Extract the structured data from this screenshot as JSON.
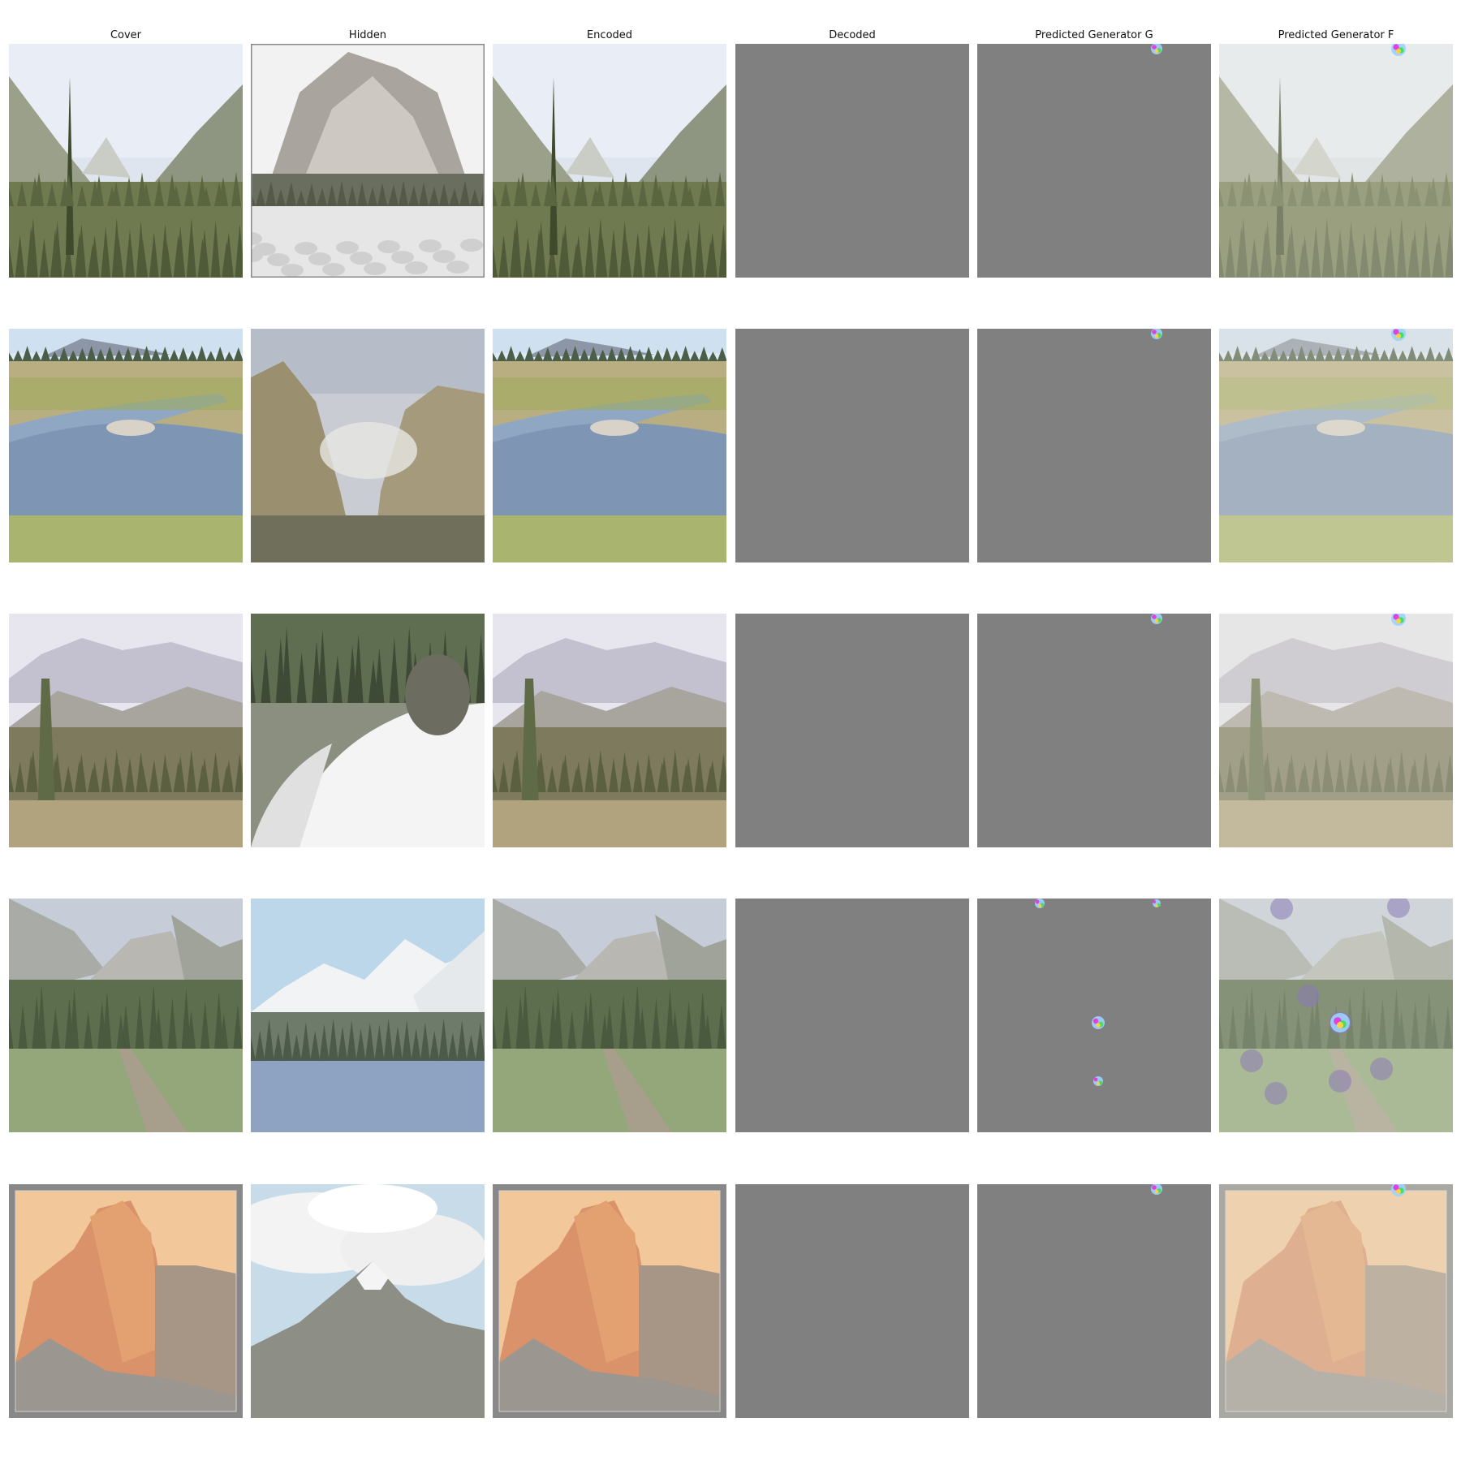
{
  "columns": [
    {
      "title": "Cover"
    },
    {
      "title": "Hidden"
    },
    {
      "title": "Encoded"
    },
    {
      "title": "Decoded"
    },
    {
      "title": "Predicted Generator G"
    },
    {
      "title": "Predicted Generator F"
    }
  ],
  "rows": [
    {
      "cover": "valley",
      "hidden": "snowpeak",
      "encoded": "valley",
      "decoded": "gray",
      "g": "gray-topdot",
      "f": "valley-faded"
    },
    {
      "cover": "meadow-stream",
      "hidden": "canyon",
      "encoded": "meadow-stream",
      "decoded": "gray",
      "g": "gray-topdot",
      "f": "meadow-stream-faded"
    },
    {
      "cover": "alpine",
      "hidden": "snowtrail",
      "encoded": "alpine",
      "decoded": "gray",
      "g": "gray-topdot",
      "f": "alpine-faded"
    },
    {
      "cover": "boardwalk",
      "hidden": "lake-peaks",
      "encoded": "boardwalk",
      "decoded": "gray",
      "g": "gray-multidot",
      "f": "boardwalk-spotted"
    },
    {
      "cover": "halfdome",
      "hidden": "cloud-peak",
      "encoded": "halfdome",
      "decoded": "gray",
      "g": "gray-topdot",
      "f": "halfdome-faded"
    }
  ],
  "palette": {
    "gray": "#808080",
    "background": "#ffffff"
  }
}
